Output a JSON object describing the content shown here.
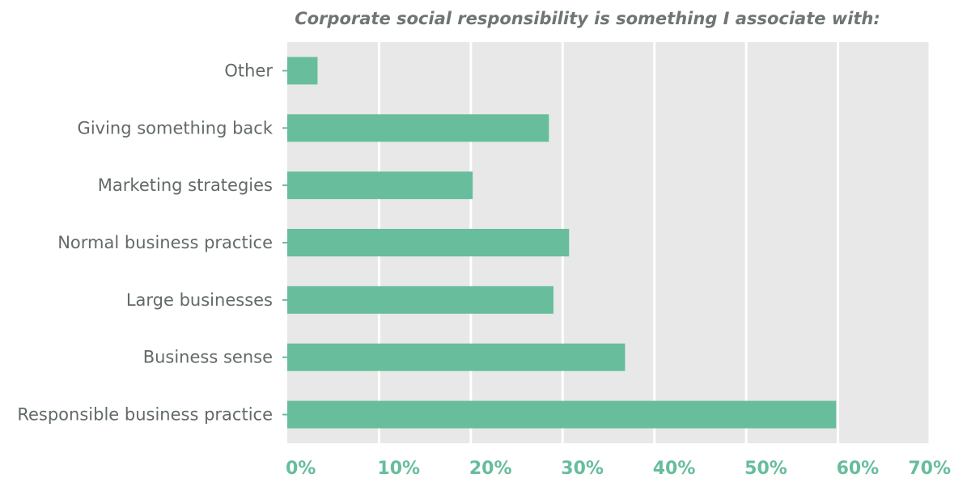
{
  "chart_data": {
    "type": "bar",
    "orientation": "horizontal",
    "title": "Corporate social responsibility is something I associate with:",
    "xlabel": "",
    "ylabel": "",
    "categories": [
      "Other",
      "Giving something back",
      "Marketing strategies",
      "Normal business practice",
      "Large businesses",
      "Business sense",
      "Responsible business practice"
    ],
    "values": [
      3.3,
      28.5,
      20.2,
      30.7,
      29.0,
      36.8,
      59.8
    ],
    "xlim": [
      0,
      70
    ],
    "xticks": [
      0,
      10,
      20,
      30,
      40,
      50,
      60,
      70
    ],
    "tick_labels": [
      "0%",
      "10%",
      "20%",
      "30%",
      "40%",
      "50%",
      "60%",
      "70%"
    ],
    "grid": true,
    "legend": "none",
    "colors": {
      "bar": "#67bd9c",
      "plot_background": "#e7e8e7",
      "gridline": "#ffffff",
      "tick_label": "#67bd9c",
      "category_label": "#626a66",
      "title": "#6f7672"
    }
  }
}
